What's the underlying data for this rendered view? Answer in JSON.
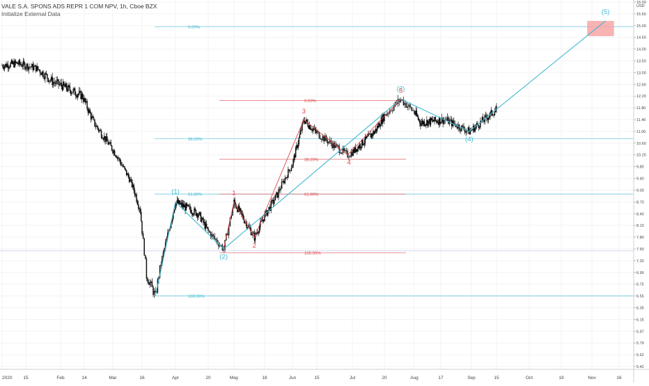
{
  "header": {
    "title": "VALE S.A. SPONS ADS REPR 1 COM NPV, 1h, Cboe BZX",
    "subtitle": "Initialize External Data"
  },
  "colors": {
    "blue": "#3fb8d2",
    "red": "#e0484d",
    "candle": "#111111",
    "grid": "#e8e8e8",
    "target_box": "#f7a0a0"
  },
  "chart_data": {
    "type": "line",
    "symbol": "VALE",
    "interval": "1h",
    "ylim": [
      5.42,
      16.0
    ],
    "y_unit": "USD",
    "y_ticks": [
      "16.00",
      "15.50",
      "15.00",
      "14.50",
      "14.00",
      "13.50",
      "13.00",
      "12.60",
      "12.20",
      "11.80",
      "11.40",
      "11.00",
      "10.60",
      "10.20",
      "9.80",
      "9.40",
      "9.00",
      "8.70",
      "8.40",
      "8.10",
      "7.80",
      "7.50",
      "7.20",
      "6.95",
      "6.75",
      "6.55",
      "6.35",
      "6.15",
      "5.97",
      "5.79",
      "5.62",
      "5.42"
    ],
    "x_ticks": [
      "2020",
      "15",
      "Feb",
      "14",
      "Mar",
      "16",
      "Apr",
      "20",
      "May",
      "18",
      "Jun",
      "15",
      "Jul",
      "20",
      "Aug",
      "17",
      "Sep",
      "15",
      "Oct",
      "19",
      "Nov",
      "16"
    ],
    "price_path": [
      {
        "x": "2020",
        "y": 13.3
      },
      {
        "x": "Jan 10",
        "y": 13.4
      },
      {
        "x": "Jan 20",
        "y": 13.2
      },
      {
        "x": "Jan 28",
        "y": 12.7
      },
      {
        "x": "Feb 14",
        "y": 12.2
      },
      {
        "x": "Feb 20",
        "y": 11.3
      },
      {
        "x": "Mar 3",
        "y": 10.2
      },
      {
        "x": "Mar 10",
        "y": 9.4
      },
      {
        "x": "Mar 16",
        "y": 8.5
      },
      {
        "x": "Mar 19",
        "y": 6.9
      },
      {
        "x": "Mar 23",
        "y": 6.55
      },
      {
        "x": "Apr 1",
        "y": 8.7
      },
      {
        "x": "Apr 15",
        "y": 8.4
      },
      {
        "x": "Apr 27",
        "y": 7.5
      },
      {
        "x": "May 1",
        "y": 8.7
      },
      {
        "x": "May 13",
        "y": 7.8
      },
      {
        "x": "May 25",
        "y": 8.9
      },
      {
        "x": "Jun 1",
        "y": 9.9
      },
      {
        "x": "Jun 8",
        "y": 11.4
      },
      {
        "x": "Jun 22",
        "y": 10.6
      },
      {
        "x": "Jun 29",
        "y": 10.2
      },
      {
        "x": "Jul 15",
        "y": 11.0
      },
      {
        "x": "Jul 27",
        "y": 12.1
      },
      {
        "x": "Aug 5",
        "y": 11.3
      },
      {
        "x": "Aug 20",
        "y": 11.4
      },
      {
        "x": "Aug 31",
        "y": 11.0
      },
      {
        "x": "Sep 15",
        "y": 11.75
      }
    ],
    "elliott_primary": [
      {
        "label": "(1)",
        "x": "Apr 1",
        "y": 8.7
      },
      {
        "label": "(2)",
        "x": "Apr 27",
        "y": 7.5
      },
      {
        "label": "(3)",
        "x": "Jul 27",
        "y": 12.1
      },
      {
        "label": "(4)",
        "x": "Aug 31",
        "y": 11.0
      },
      {
        "label": "(5)",
        "x": "Nov 9",
        "y": 15.2
      }
    ],
    "elliott_minor": [
      {
        "label": "1",
        "x": "May 1",
        "y": 8.7
      },
      {
        "label": "2",
        "x": "May 13",
        "y": 7.8
      },
      {
        "label": "3",
        "x": "Jun 8",
        "y": 11.4
      },
      {
        "label": "4",
        "x": "Jun 29",
        "y": 10.2
      },
      {
        "label": "5",
        "x": "Jul 27",
        "y": 12.1
      }
    ],
    "fib_primary": [
      {
        "label": "0.00%",
        "value": 14.95
      },
      {
        "label": "38.20%",
        "value": 10.75
      },
      {
        "label": "61.80%",
        "value": 8.9
      },
      {
        "label": "100.00%",
        "value": 6.55
      }
    ],
    "fib_minor": [
      {
        "label": "0.00%",
        "value": 12.05
      },
      {
        "label": "38.20%",
        "value": 10.05
      },
      {
        "label": "61.80%",
        "value": 8.9
      },
      {
        "label": "100.00%",
        "value": 7.4
      }
    ],
    "target_zone": {
      "from": "Oct 30",
      "to": "Nov 14",
      "y_low": 14.55,
      "y_high": 15.2
    }
  }
}
